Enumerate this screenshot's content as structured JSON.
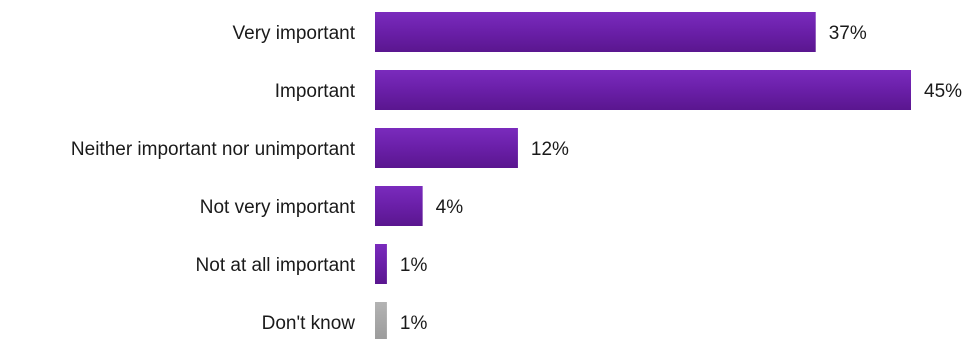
{
  "chart_data": {
    "type": "bar",
    "orientation": "horizontal",
    "categories": [
      "Very important",
      "Important",
      "Neither important nor unimportant",
      "Not very important",
      "Not at all important",
      "Don't know"
    ],
    "values": [
      37,
      45,
      12,
      4,
      1,
      1
    ],
    "value_labels": [
      "37%",
      "45%",
      "12%",
      "4%",
      "1%",
      "1%"
    ],
    "unit": "%",
    "colors": [
      "#6a1fa8",
      "#6a1fa8",
      "#6a1fa8",
      "#6a1fa8",
      "#6a1fa8",
      "#a6a6a6"
    ],
    "xlim": [
      0,
      45
    ],
    "grid": false,
    "legend": "none"
  }
}
